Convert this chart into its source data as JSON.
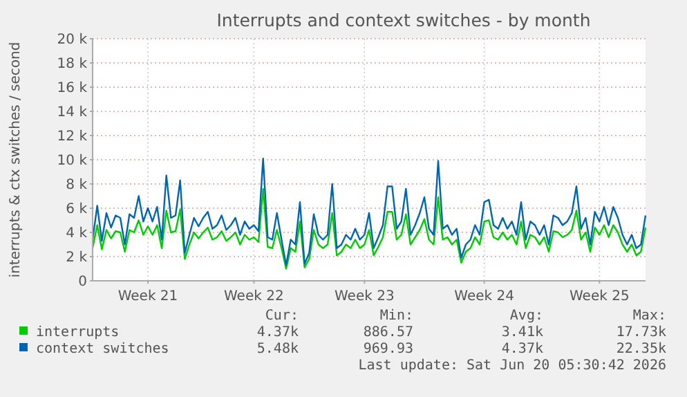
{
  "chart_data": {
    "type": "line",
    "title": "Interrupts and context switches - by month",
    "ylabel": "interrupts & ctx switches / second",
    "categories": [
      null,
      null,
      null,
      null,
      null,
      null,
      null,
      null,
      null,
      null,
      null,
      null,
      "Week 21",
      null,
      null,
      null,
      null,
      null,
      null,
      null,
      null,
      null,
      null,
      null,
      null,
      null,
      null,
      null,
      null,
      null,
      null,
      null,
      null,
      null,
      null,
      "Week 22",
      null,
      null,
      null,
      null,
      null,
      null,
      null,
      null,
      null,
      null,
      null,
      null,
      null,
      null,
      null,
      null,
      null,
      null,
      null,
      null,
      null,
      null,
      null,
      "Week 23",
      null,
      null,
      null,
      null,
      null,
      null,
      null,
      null,
      null,
      null,
      null,
      null,
      null,
      null,
      null,
      null,
      null,
      null,
      null,
      null,
      null,
      null,
      null,
      null,
      null,
      "Week 24",
      null,
      null,
      null,
      null,
      null,
      null,
      null,
      null,
      null,
      null,
      null,
      null,
      null,
      null,
      null,
      null,
      null,
      null,
      null,
      null,
      null,
      null,
      null,
      null,
      "Week 25",
      null,
      null,
      null,
      null,
      null,
      null,
      null,
      null,
      null,
      null
    ],
    "ylim": [
      0,
      20
    ],
    "yticks": [
      {
        "value": 0,
        "label": "0"
      },
      {
        "value": 2,
        "label": "2 k"
      },
      {
        "value": 4,
        "label": "4 k"
      },
      {
        "value": 6,
        "label": "6 k"
      },
      {
        "value": 8,
        "label": "8 k"
      },
      {
        "value": 10,
        "label": "10 k"
      },
      {
        "value": 12,
        "label": "12 k"
      },
      {
        "value": 14,
        "label": "14 k"
      },
      {
        "value": 16,
        "label": "16 k"
      },
      {
        "value": 18,
        "label": "18 k"
      },
      {
        "value": 20,
        "label": "20 k"
      }
    ],
    "series": [
      {
        "name": "interrupts",
        "color": "#00cc00",
        "values": [
          2.7,
          4.6,
          2.6,
          4.2,
          3.5,
          4.1,
          4.0,
          2.4,
          4.2,
          4.0,
          5.0,
          3.8,
          4.5,
          3.8,
          4.6,
          2.7,
          5.8,
          4.0,
          4.1,
          5.9,
          1.8,
          3.0,
          4.0,
          3.5,
          4.0,
          4.4,
          3.4,
          3.6,
          4.1,
          3.3,
          3.6,
          4.0,
          3.0,
          3.8,
          3.4,
          3.6,
          3.2,
          7.6,
          2.8,
          2.7,
          4.2,
          2.7,
          1.0,
          2.7,
          2.4,
          4.9,
          1.1,
          1.8,
          4.2,
          3.0,
          2.7,
          3.0,
          5.6,
          2.1,
          2.4,
          3.0,
          2.7,
          3.4,
          2.7,
          3.0,
          4.2,
          2.1,
          2.8,
          3.6,
          5.7,
          5.7,
          3.4,
          3.8,
          5.5,
          3.0,
          3.6,
          4.2,
          5.1,
          3.4,
          3.0,
          6.9,
          3.4,
          3.6,
          3.0,
          3.4,
          1.5,
          2.4,
          2.7,
          3.6,
          3.0,
          4.9,
          5.0,
          3.6,
          3.4,
          4.0,
          3.4,
          3.8,
          3.0,
          4.9,
          2.7,
          3.8,
          3.6,
          3.0,
          3.6,
          2.4,
          4.1,
          4.0,
          3.6,
          3.8,
          4.2,
          5.8,
          3.4,
          4.0,
          2.4,
          4.4,
          3.8,
          4.6,
          3.6,
          4.6,
          4.0,
          3.0,
          2.4,
          3.0,
          2.1,
          2.4,
          4.4
        ]
      },
      {
        "name": "context switches",
        "color": "#0066b3",
        "values": [
          3.4,
          6.2,
          3.3,
          5.6,
          4.4,
          5.4,
          5.2,
          3.0,
          5.5,
          5.2,
          7.0,
          4.9,
          6.0,
          4.9,
          6.1,
          3.4,
          8.7,
          5.2,
          5.4,
          8.3,
          2.3,
          3.8,
          5.2,
          4.5,
          5.2,
          5.7,
          4.3,
          4.6,
          5.4,
          4.2,
          4.6,
          5.2,
          3.8,
          4.9,
          4.3,
          4.6,
          4.1,
          10.1,
          3.6,
          3.4,
          5.6,
          3.4,
          1.3,
          3.4,
          3.0,
          6.5,
          1.4,
          2.3,
          5.5,
          3.8,
          3.4,
          3.8,
          8.0,
          2.7,
          3.0,
          3.8,
          3.4,
          4.3,
          3.4,
          3.8,
          5.6,
          2.7,
          3.6,
          4.6,
          7.8,
          7.8,
          4.3,
          4.9,
          7.6,
          3.8,
          4.6,
          5.6,
          6.9,
          4.3,
          3.8,
          9.9,
          4.3,
          4.6,
          3.8,
          4.3,
          1.9,
          3.0,
          3.4,
          4.6,
          3.8,
          6.5,
          6.7,
          4.6,
          4.3,
          5.2,
          4.3,
          4.9,
          3.8,
          6.5,
          3.4,
          4.9,
          4.6,
          3.8,
          4.6,
          3.0,
          5.4,
          5.2,
          4.6,
          4.9,
          5.6,
          7.8,
          4.3,
          5.2,
          3.0,
          5.7,
          4.9,
          6.1,
          4.6,
          6.1,
          5.2,
          3.8,
          3.0,
          3.8,
          2.7,
          3.0,
          5.4
        ]
      }
    ],
    "legend": "bottom",
    "grid": true,
    "marker": "none",
    "line_style": "solid",
    "annotations": [
      "Cur:",
      "Min:",
      "Avg:",
      "Max:",
      "4.37k",
      "886.57",
      "3.41k",
      "17.73k",
      "5.48k",
      "969.93",
      "4.37k",
      "22.35k",
      "Last update: Sat Jun 20 05:30:42 2026"
    ]
  }
}
